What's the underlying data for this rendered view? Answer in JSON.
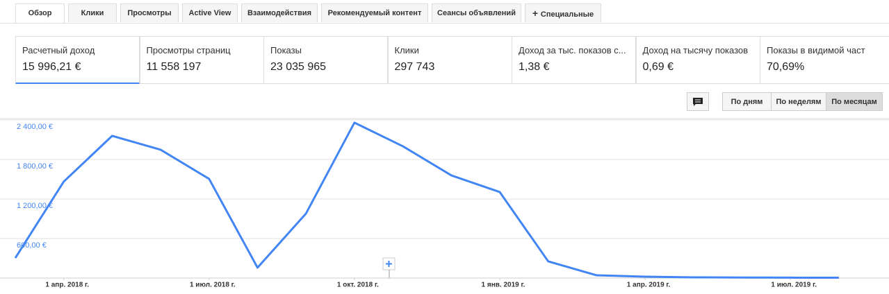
{
  "tabs": [
    "Обзор",
    "Клики",
    "Просмотры",
    "Active View",
    "Взаимодействия",
    "Рекомендуемый контент",
    "Сеансы объявлений",
    "Специальные"
  ],
  "metrics": [
    {
      "label": "Расчетный доход",
      "value": "15 996,21 €"
    },
    {
      "label": "Просмотры страниц",
      "value": "11 558 197"
    },
    {
      "label": "Показы",
      "value": "23 035 965"
    },
    {
      "label": "Клики",
      "value": "297 743"
    },
    {
      "label": "Доход за тыс. показов с...",
      "value": "1,38 €"
    },
    {
      "label": "Доход на тысячу показов",
      "value": "0,69 €"
    },
    {
      "label": "Показы в видимой част",
      "value": "70,69%"
    }
  ],
  "period_buttons": [
    "По дням",
    "По неделям",
    "По месяцам"
  ],
  "chart_data": {
    "type": "line",
    "x": [
      "2018-03",
      "2018-04",
      "2018-05",
      "2018-06",
      "2018-07",
      "2018-08",
      "2018-09",
      "2018-10",
      "2018-11",
      "2018-12",
      "2019-01",
      "2019-02",
      "2019-03",
      "2019-04",
      "2019-05",
      "2019-06",
      "2019-07",
      "2019-08"
    ],
    "series": [
      {
        "name": "Расчетный доход",
        "color": "#4285f4",
        "values": [
          305,
          1463,
          2158,
          1947,
          1505,
          158,
          979,
          2358,
          2000,
          1558,
          1305,
          253,
          42,
          21,
          11,
          8,
          6,
          5
        ]
      }
    ],
    "xlim": [
      "2018-03",
      "2019-08"
    ],
    "xticks": [
      {
        "value": "2018-04",
        "label": "1 апр. 2018 г."
      },
      {
        "value": "2018-07",
        "label": "1 июл. 2018 г."
      },
      {
        "value": "2018-10",
        "label": "1 окт. 2018 г."
      },
      {
        "value": "2019-01",
        "label": "1 янв. 2019 г."
      },
      {
        "value": "2019-04",
        "label": "1 апр. 2019 г."
      },
      {
        "value": "2019-07",
        "label": "1 июл. 2019 г."
      }
    ],
    "ylim": [
      0,
      2420
    ],
    "yticks": [
      {
        "value": 600,
        "label": "600,00 €"
      },
      {
        "value": 1200,
        "label": "1 200,00 €"
      },
      {
        "value": 1800,
        "label": "1 800,00 €"
      },
      {
        "value": 2400,
        "label": "2 400,00 €"
      }
    ],
    "grid": true
  }
}
